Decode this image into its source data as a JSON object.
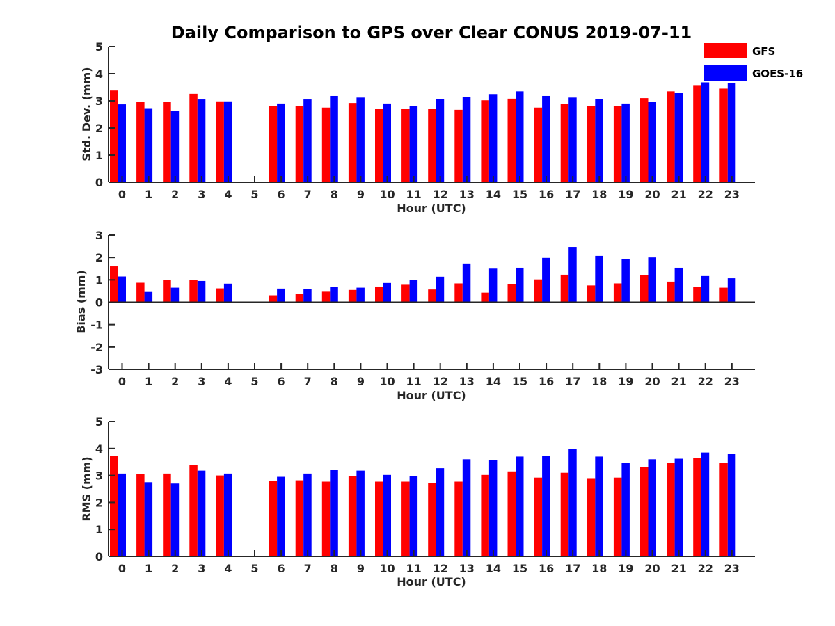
{
  "chart_data": {
    "type": "bar",
    "title": "Daily Comparison to GPS over Clear CONUS 2019-07-11",
    "legend": {
      "position": "top-right",
      "entries": [
        {
          "name": "GFS",
          "color": "#ff0000"
        },
        {
          "name": "GOES-16",
          "color": "#0000ff"
        }
      ]
    },
    "categories": [
      "0",
      "1",
      "2",
      "3",
      "4",
      "5",
      "6",
      "7",
      "8",
      "9",
      "10",
      "11",
      "12",
      "13",
      "14",
      "15",
      "16",
      "17",
      "18",
      "19",
      "20",
      "21",
      "22",
      "23"
    ],
    "panels": [
      {
        "id": "std",
        "ylabel": "Std. Dev. (mm)",
        "xlabel": "Hour (UTC)",
        "ylim": [
          0,
          5
        ],
        "yticks": [
          "0",
          "1",
          "2",
          "3",
          "4",
          "5"
        ],
        "series": [
          {
            "name": "GFS",
            "color": "#ff0000",
            "values": [
              3.38,
              2.95,
              2.95,
              3.26,
              2.98,
              null,
              2.8,
              2.82,
              2.75,
              2.92,
              2.7,
              2.7,
              2.7,
              2.67,
              3.02,
              3.08,
              2.75,
              2.88,
              2.82,
              2.82,
              3.1,
              3.35,
              3.58,
              3.45
            ]
          },
          {
            "name": "GOES-16",
            "color": "#0000ff",
            "values": [
              2.87,
              2.73,
              2.62,
              3.05,
              2.98,
              null,
              2.9,
              3.05,
              3.18,
              3.12,
              2.9,
              2.8,
              3.07,
              3.15,
              3.25,
              3.35,
              3.18,
              3.12,
              3.07,
              2.9,
              2.97,
              3.3,
              3.68,
              3.65
            ]
          }
        ]
      },
      {
        "id": "bias",
        "ylabel": "Bias (mm)",
        "xlabel": "Hour (UTC)",
        "ylim": [
          -3,
          3
        ],
        "yticks": [
          "-3",
          "-2",
          "-1",
          "0",
          "1",
          "2",
          "3"
        ],
        "series": [
          {
            "name": "GFS",
            "color": "#ff0000",
            "values": [
              1.6,
              0.87,
              0.98,
              0.98,
              0.62,
              null,
              0.31,
              0.38,
              0.47,
              0.55,
              0.7,
              0.78,
              0.57,
              0.84,
              0.43,
              0.8,
              1.02,
              1.23,
              0.75,
              0.84,
              1.2,
              0.92,
              0.68,
              0.65
            ]
          },
          {
            "name": "GOES-16",
            "color": "#0000ff",
            "values": [
              1.15,
              0.46,
              0.65,
              0.95,
              0.83,
              null,
              0.61,
              0.58,
              0.68,
              0.65,
              0.86,
              0.98,
              1.14,
              1.73,
              1.5,
              1.54,
              1.98,
              2.47,
              2.07,
              1.92,
              2.0,
              1.54,
              1.17,
              1.07
            ]
          }
        ]
      },
      {
        "id": "rms",
        "ylabel": "RMS (mm)",
        "xlabel": "Hour (UTC)",
        "ylim": [
          0,
          5
        ],
        "yticks": [
          "0",
          "1",
          "2",
          "3",
          "4",
          "5"
        ],
        "series": [
          {
            "name": "GFS",
            "color": "#ff0000",
            "values": [
              3.72,
              3.05,
              3.07,
              3.4,
              3.0,
              null,
              2.8,
              2.82,
              2.77,
              2.97,
              2.77,
              2.77,
              2.72,
              2.77,
              3.02,
              3.15,
              2.92,
              3.1,
              2.9,
              2.92,
              3.3,
              3.47,
              3.65,
              3.47
            ]
          },
          {
            "name": "GOES-16",
            "color": "#0000ff",
            "values": [
              3.07,
              2.75,
              2.7,
              3.18,
              3.07,
              null,
              2.95,
              3.07,
              3.22,
              3.18,
              3.02,
              2.97,
              3.27,
              3.6,
              3.57,
              3.7,
              3.72,
              3.98,
              3.7,
              3.47,
              3.6,
              3.62,
              3.85,
              3.8
            ]
          }
        ]
      }
    ]
  }
}
